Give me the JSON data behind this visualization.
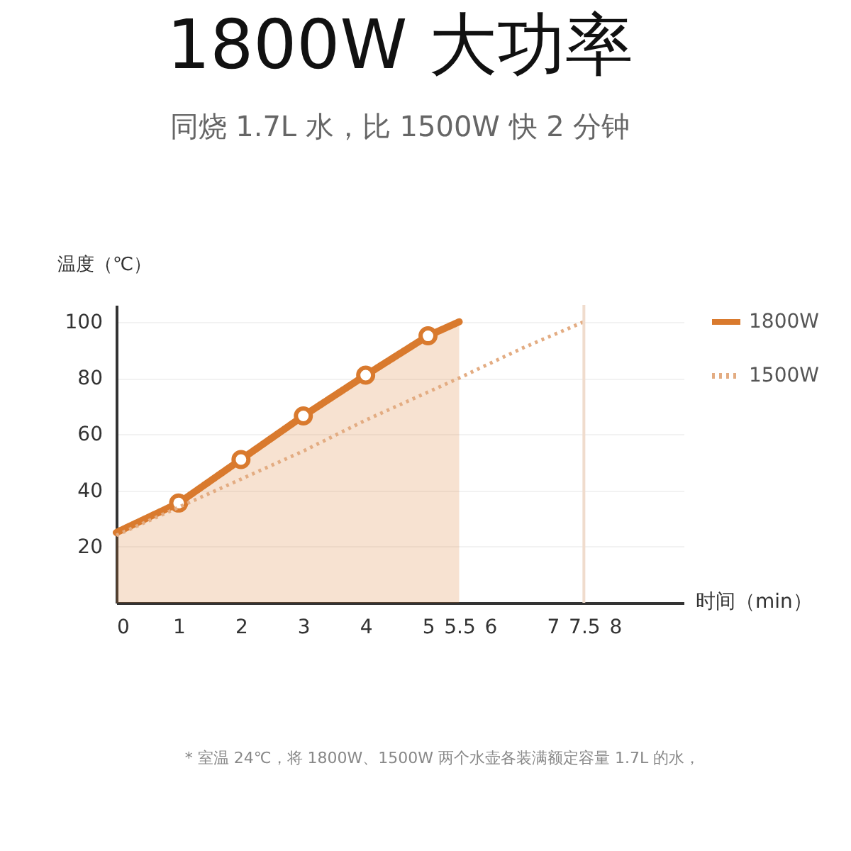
{
  "chart_data": {
    "type": "line",
    "title": "1800W 大功率",
    "subtitle": "同烧 1.7L 水，比 1500W 快 2 分钟",
    "xlabel": "时间（min）",
    "ylabel": "温度（℃）",
    "xlim": [
      0,
      9.1
    ],
    "xticks": [
      0,
      1,
      2,
      3,
      4,
      5,
      5.5,
      6,
      7,
      7.5,
      8
    ],
    "ylim": [
      0,
      106
    ],
    "yticks": [
      20,
      40,
      60,
      80,
      100
    ],
    "grid": "y",
    "legend": "top right",
    "series": [
      {
        "name": "1800W",
        "type": "area",
        "color": "#d97a2e",
        "marker": "circle",
        "line_style": "solid",
        "x": [
          0,
          1,
          2,
          3,
          4,
          5,
          5.5
        ],
        "values": [
          25,
          35.5,
          51,
          66.5,
          81,
          95,
          100
        ]
      },
      {
        "name": "1500W",
        "color": "#e3ac82",
        "marker": "none",
        "line_style": "dotted",
        "x": [
          0,
          1,
          2,
          3,
          4,
          5,
          5.5,
          6.5,
          7.5
        ],
        "values": [
          24,
          34,
          44,
          54,
          65,
          75,
          80,
          90.5,
          100
        ]
      }
    ],
    "ref_lines": [
      {
        "axis": "x",
        "value": 7.5,
        "color": "#f0dccd"
      }
    ],
    "annotations": [
      "* 室温 24℃，将 1800W、1500W 两个水壶各装满额定容量 1.7L 的水，"
    ]
  }
}
